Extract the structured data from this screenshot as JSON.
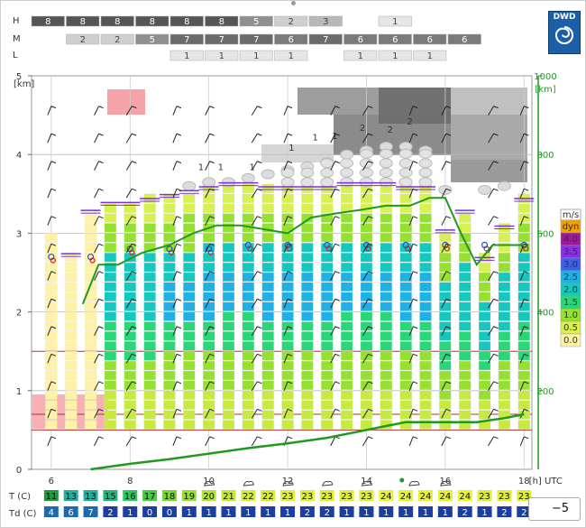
{
  "logo": {
    "text": "DWD"
  },
  "stepper": {
    "value": "−5"
  },
  "cloud_rows": {
    "H": {
      "label": "H",
      "cells": [
        8,
        8,
        8,
        8,
        8,
        8,
        5,
        2,
        3,
        null,
        1,
        null,
        null
      ]
    },
    "M": {
      "label": "M",
      "cells": [
        null,
        2,
        2,
        5,
        7,
        7,
        7,
        6,
        7,
        6,
        6,
        6,
        6
      ]
    },
    "L": {
      "label": "L",
      "cells": [
        null,
        null,
        null,
        null,
        1,
        1,
        1,
        1,
        null,
        1,
        1,
        1,
        null
      ]
    }
  },
  "chart_data": {
    "type": "meteogram",
    "x_label": "[h] UTC",
    "x_ticks": [
      "6",
      "8",
      "10",
      "12",
      "14",
      "16",
      "18"
    ],
    "x_range": [
      5.5,
      18.2
    ],
    "left_axis": {
      "label": "[km]",
      "ticks": [
        "0",
        "1",
        "2",
        "3",
        "4",
        "5"
      ],
      "range": [
        0,
        5
      ]
    },
    "right_axis": {
      "label": "[km]",
      "ticks": [
        "200",
        "400",
        "600",
        "800",
        "1000"
      ],
      "range": [
        0,
        1000
      ]
    },
    "hours": [
      6,
      6.5,
      7,
      7.5,
      8,
      8.5,
      9,
      9.5,
      10,
      10.5,
      11,
      11.5,
      12,
      12.5,
      13,
      13.5,
      14,
      14.5,
      15,
      15.5,
      16,
      16.5,
      17,
      17.5,
      18
    ],
    "bar_tops": [
      2.95,
      2.7,
      3.25,
      3.35,
      3.35,
      3.4,
      3.45,
      3.5,
      3.55,
      3.6,
      3.6,
      3.55,
      3.55,
      3.55,
      3.55,
      3.6,
      3.6,
      3.6,
      3.55,
      3.55,
      3.0,
      3.25,
      2.65,
      3.05,
      3.4
    ],
    "cloud_top_km": [
      null,
      null,
      null,
      null,
      null,
      null,
      null,
      3.6,
      3.65,
      3.65,
      3.7,
      3.75,
      3.8,
      3.85,
      3.9,
      4.0,
      4.05,
      4.1,
      4.1,
      4.05,
      3.55,
      null,
      3.55,
      3.6,
      null
    ],
    "boundary_layer": {
      "x": [
        6.8,
        7.2,
        7.7,
        8.3,
        9.0,
        9.6,
        10.2,
        10.8,
        11.4,
        12.0,
        12.6,
        13.2,
        13.9,
        14.5,
        15.1,
        15.6,
        16.0,
        16.4,
        16.8,
        17.2,
        17.6,
        18.0
      ],
      "y": [
        2.1,
        2.6,
        2.6,
        2.75,
        2.85,
        3.0,
        3.1,
        3.1,
        3.05,
        3.0,
        3.2,
        3.25,
        3.3,
        3.35,
        3.35,
        3.45,
        3.45,
        3.0,
        2.6,
        2.85,
        2.85,
        2.85
      ]
    },
    "lower_line": {
      "x": [
        7.0,
        8.0,
        9.0,
        10.0,
        11.0,
        12.0,
        13.0,
        14.0,
        14.5,
        15.0,
        16.8,
        17.5,
        18.0
      ],
      "y": [
        0.0,
        0.07,
        0.13,
        0.2,
        0.27,
        0.33,
        0.4,
        0.5,
        0.55,
        0.6,
        0.6,
        0.65,
        0.7
      ]
    },
    "legend": {
      "title": "m/s",
      "entries": [
        "dyn",
        "4.0",
        "3.5",
        "3.0",
        "2.5",
        "2.0",
        "1.5",
        "1.0",
        "0.5",
        "0.0"
      ],
      "colors": [
        "#f0a000",
        "#9b1a9b",
        "#8a2fe0",
        "#3f5fe6",
        "#1fb0e6",
        "#14c8c0",
        "#28d878",
        "#96e030",
        "#d8f050",
        "#fdf2a8"
      ]
    },
    "T_row": {
      "label": "T (C)",
      "values": [
        11,
        13,
        13,
        15,
        16,
        17,
        18,
        19,
        20,
        21,
        22,
        22,
        23,
        23,
        23,
        23,
        23,
        24,
        24,
        24,
        24,
        24,
        23,
        23,
        23
      ],
      "colors": [
        "#1f9a3a",
        "#1fb0a0",
        "#1fb0a0",
        "#1fb87a",
        "#28c860",
        "#45cc40",
        "#76d82c",
        "#96e030",
        "#b0e630",
        "#c4ea30",
        "#d4ee30",
        "#d4ee30",
        "#e0f030",
        "#e0f030",
        "#e0f030",
        "#e0f030",
        "#e0f030",
        "#e8f230",
        "#e8f230",
        "#e8f230",
        "#e8f230",
        "#e8f230",
        "#e0f030",
        "#e0f030",
        "#e0f030"
      ]
    },
    "Td_row": {
      "label": "Td (C)",
      "values": [
        4,
        6,
        7,
        2,
        1,
        0,
        0,
        1,
        1,
        1,
        1,
        1,
        1,
        2,
        2,
        1,
        1,
        1,
        1,
        1,
        1,
        2,
        1,
        2,
        2
      ],
      "colors": [
        "#1c6bb0",
        "#1c6bb0",
        "#1c6bb0",
        "#1b3fa0",
        "#1b3fa0",
        "#1b3fa0",
        "#1b3fa0",
        "#1b3fa0",
        "#1b3fa0",
        "#1b3fa0",
        "#1b3fa0",
        "#1b3fa0",
        "#1b3fa0",
        "#1b3fa0",
        "#1b3fa0",
        "#1b3fa0",
        "#1b3fa0",
        "#1b3fa0",
        "#1b3fa0",
        "#1b3fa0",
        "#1b3fa0",
        "#1b3fa0",
        "#1b3fa0",
        "#1b3fa0",
        "#1b3fa0"
      ],
      "signs": [
        0,
        0,
        0,
        0,
        0,
        0,
        0,
        -1,
        -1,
        -1,
        -1,
        -1,
        -1,
        -1,
        -1,
        -1,
        -1,
        -1,
        -1,
        -1,
        -1,
        -1,
        -1,
        -1,
        -1
      ]
    }
  },
  "colors": {
    "accent": "#1f9a1f",
    "red_line": "#b03030",
    "grid": "#bbbbbb"
  }
}
